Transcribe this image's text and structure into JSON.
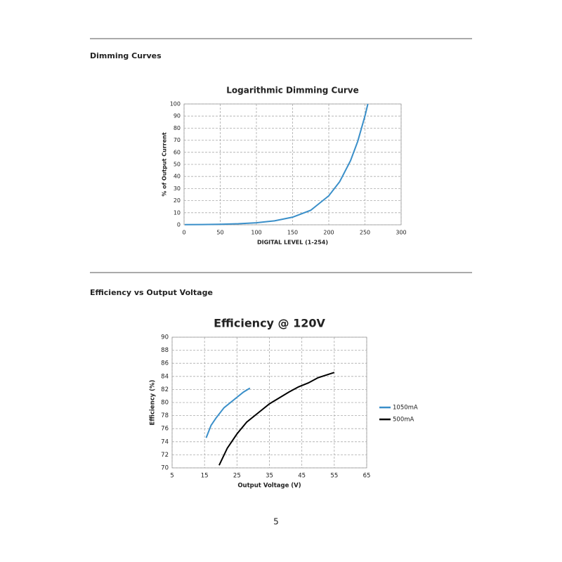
{
  "sections": [
    {
      "heading": "Dimming Curves"
    },
    {
      "heading": "Efficiency vs Output Voltage"
    }
  ],
  "page_number": 5,
  "chart_data": [
    {
      "type": "line",
      "title": "Logarithmic Dimming Curve",
      "x_label": "DIGITAL LEVEL (1-254)",
      "y_label": "% of Output Current",
      "x": [
        1,
        25,
        50,
        75,
        100,
        125,
        150,
        175,
        200,
        215,
        230,
        240,
        250,
        254
      ],
      "values": [
        0.12,
        0.23,
        0.45,
        0.87,
        1.7,
        3.3,
        6.3,
        12,
        24,
        35.6,
        53,
        69,
        90,
        100
      ],
      "color": "#3a8fc9",
      "xlim": [
        0,
        300
      ],
      "xticks": [
        0,
        50,
        100,
        150,
        200,
        250,
        300
      ],
      "ylim": [
        0,
        100
      ],
      "yticks": [
        0,
        10,
        20,
        30,
        40,
        50,
        60,
        70,
        80,
        90,
        100
      ],
      "grid": true
    },
    {
      "type": "line",
      "title": "Efficiency @ 120V",
      "x_label": "Output Voltage (V)",
      "y_label": "Efficiency (%)",
      "series": [
        {
          "name": "1050mA",
          "color": "#3a8fc9",
          "x": [
            15.5,
            17,
            18.5,
            21,
            24,
            27,
            29
          ],
          "values": [
            74.6,
            76.5,
            77.6,
            79.2,
            80.4,
            81.6,
            82.2
          ]
        },
        {
          "name": "500mA",
          "color": "#000000",
          "x": [
            19.5,
            22,
            25,
            28,
            32,
            35,
            38,
            41,
            44,
            47,
            50,
            55
          ],
          "values": [
            70.4,
            73,
            75.2,
            77,
            78.6,
            79.8,
            80.7,
            81.6,
            82.4,
            83,
            83.8,
            84.6
          ]
        }
      ],
      "xlim": [
        5,
        65
      ],
      "xticks": [
        5,
        15,
        25,
        35,
        45,
        55,
        65
      ],
      "ylim": [
        70,
        90
      ],
      "yticks": [
        70,
        72,
        74,
        76,
        78,
        80,
        82,
        84,
        86,
        88,
        90
      ],
      "grid": true,
      "legend": "right"
    }
  ]
}
